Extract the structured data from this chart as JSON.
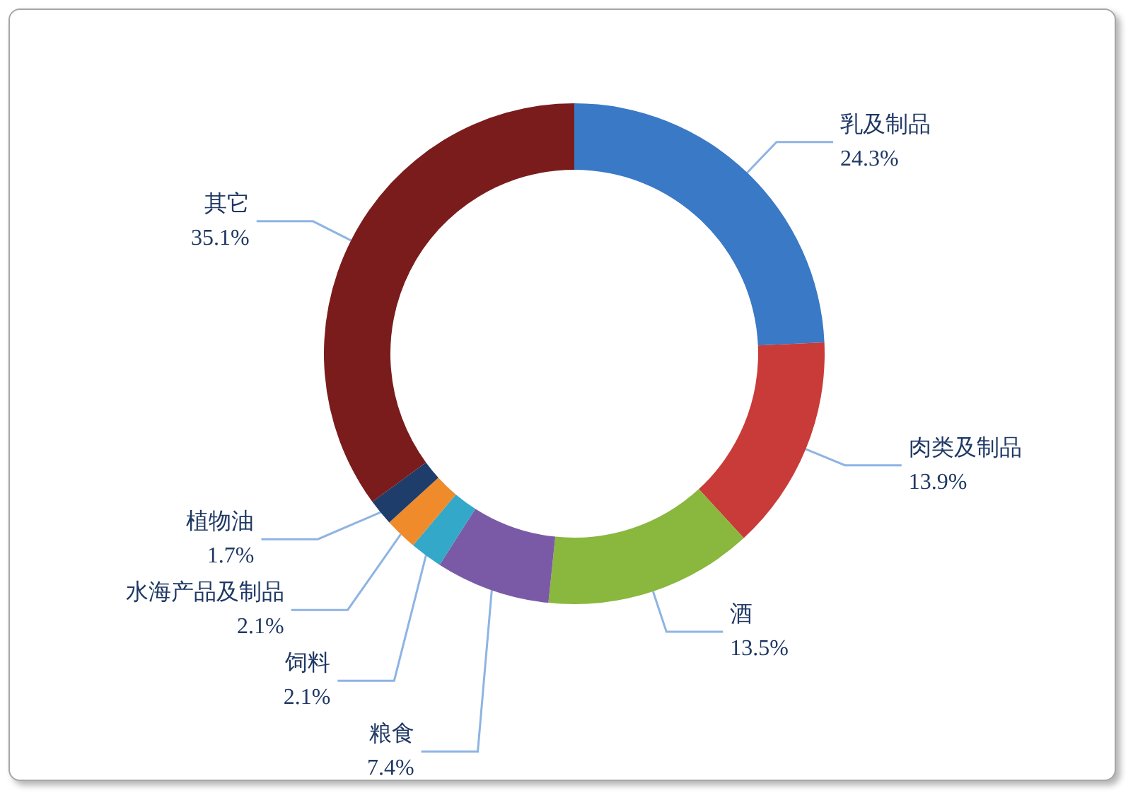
{
  "chart_data": {
    "type": "donut",
    "categories": [
      "乳及制品",
      "肉类及制品",
      "酒",
      "粮食",
      "饲料",
      "水海产品及制品",
      "植物油",
      "其它"
    ],
    "values": [
      24.3,
      13.9,
      13.5,
      7.4,
      2.1,
      2.1,
      1.7,
      35.1
    ],
    "value_labels": [
      "24.3%",
      "13.9%",
      "13.5%",
      "7.4%",
      "2.1%",
      "2.1%",
      "1.7%",
      "35.1%"
    ],
    "colors": [
      "#3a79c6",
      "#c93b38",
      "#8ab73d",
      "#7a5aa6",
      "#33a8c8",
      "#f08b2b",
      "#1f3d6b",
      "#7b1c1c"
    ],
    "legend": false
  }
}
